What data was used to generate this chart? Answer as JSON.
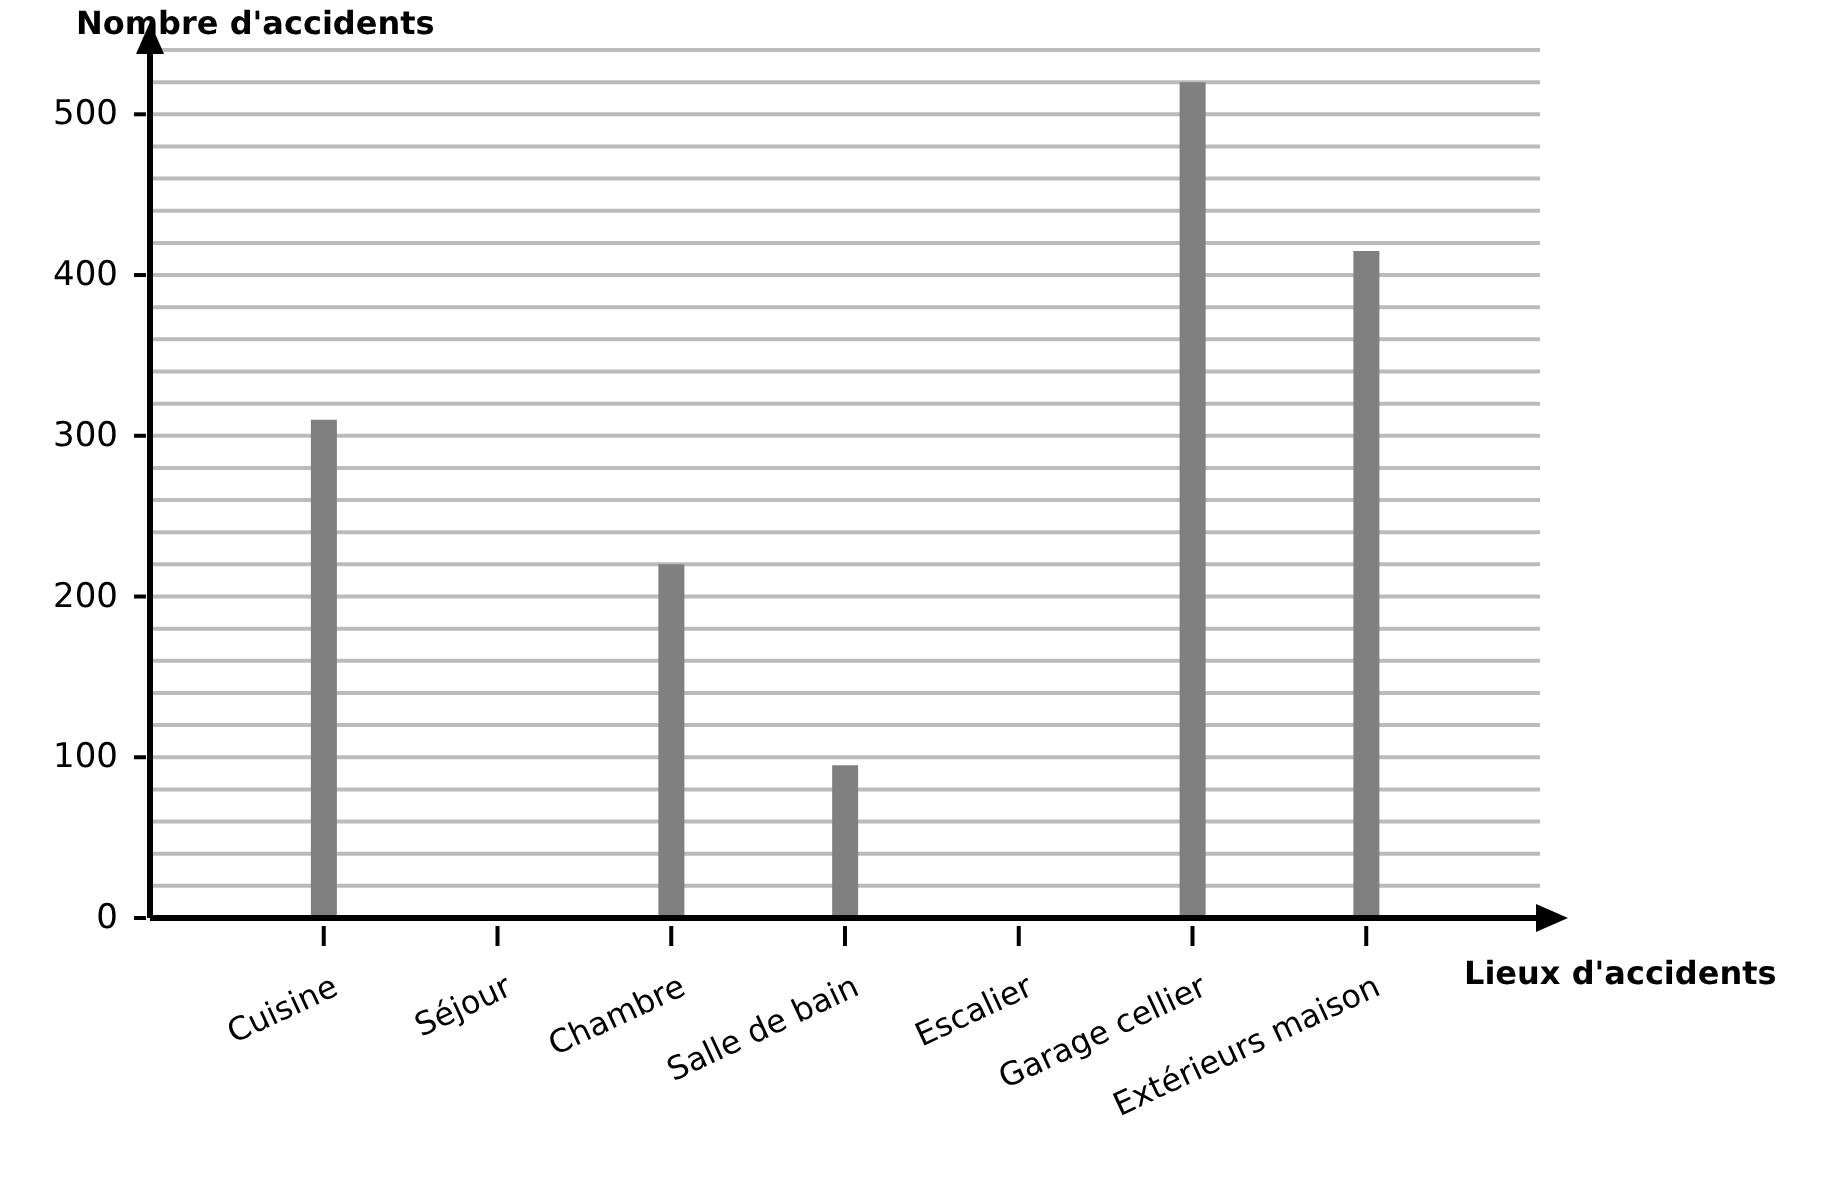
{
  "chart_data": {
    "type": "bar",
    "xlabel": "Lieux d'accidents",
    "ylabel": "Nombre d'accidents",
    "categories": [
      "Cuisine",
      "Séjour",
      "Chambre",
      "Salle de bain",
      "Escalier",
      "Garage cellier",
      "Extérieurs maison"
    ],
    "values": [
      310,
      0,
      220,
      95,
      0,
      520,
      415
    ],
    "color": "#808080",
    "ylim": [
      0,
      540
    ],
    "yticks": [
      0,
      {
        "value": 20,
        "label": null
      },
      {
        "value": 40,
        "label": null
      },
      {
        "value": 60,
        "label": null
      },
      {
        "value": 80,
        "label": null
      },
      100,
      {
        "value": 120,
        "label": null
      },
      {
        "value": 140,
        "label": null
      },
      {
        "value": 160,
        "label": null
      },
      {
        "value": 180,
        "label": null
      },
      200,
      {
        "value": 220,
        "label": null
      },
      {
        "value": 240,
        "label": null
      },
      {
        "value": 260,
        "label": null
      },
      {
        "value": 280,
        "label": null
      },
      300,
      {
        "value": 320,
        "label": null
      },
      {
        "value": 340,
        "label": null
      },
      {
        "value": 360,
        "label": null
      },
      {
        "value": 380,
        "label": null
      },
      400,
      {
        "value": 420,
        "label": null
      },
      {
        "value": 440,
        "label": null
      },
      {
        "value": 460,
        "label": null
      },
      {
        "value": 480,
        "label": null
      },
      500,
      {
        "value": 520,
        "label": null
      },
      {
        "value": 540,
        "label": null
      }
    ],
    "grid": "y"
  }
}
